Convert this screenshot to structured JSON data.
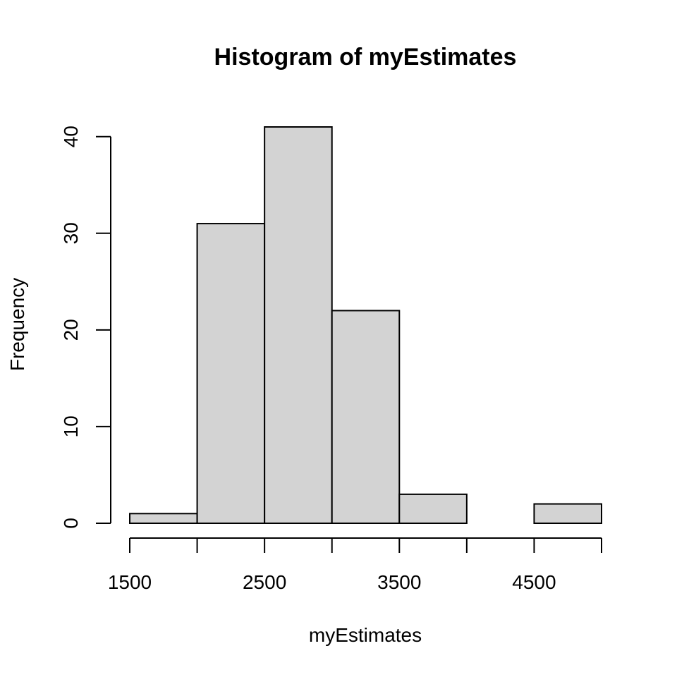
{
  "chart_data": {
    "type": "bar",
    "title": "Histogram of myEstimates",
    "xlabel": "myEstimates",
    "ylabel": "Frequency",
    "bins": [
      {
        "start": 1500,
        "end": 2000,
        "count": 1
      },
      {
        "start": 2000,
        "end": 2500,
        "count": 31
      },
      {
        "start": 2500,
        "end": 3000,
        "count": 41
      },
      {
        "start": 3000,
        "end": 3500,
        "count": 22
      },
      {
        "start": 3500,
        "end": 4000,
        "count": 3
      },
      {
        "start": 4000,
        "end": 4500,
        "count": 0
      },
      {
        "start": 4500,
        "end": 5000,
        "count": 2
      }
    ],
    "xlim": [
      1500,
      5000
    ],
    "ylim": [
      0,
      41
    ],
    "x_ticks": [
      1500,
      2000,
      2500,
      3000,
      3500,
      4000,
      4500,
      5000
    ],
    "x_tick_labels": [
      "1500",
      "",
      "2500",
      "",
      "3500",
      "",
      "4500",
      ""
    ],
    "y_ticks": [
      0,
      10,
      20,
      30,
      40
    ],
    "y_tick_labels": [
      "0",
      "10",
      "20",
      "30",
      "40"
    ],
    "bar_color": "#d3d3d3",
    "grid": false,
    "legend": "none"
  }
}
